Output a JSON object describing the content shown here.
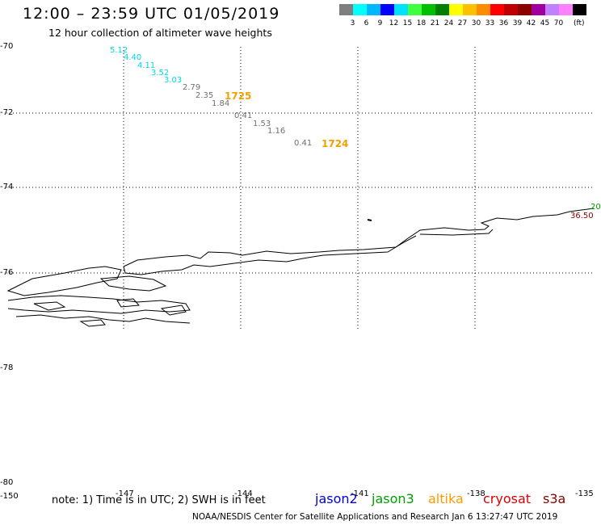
{
  "header": {
    "title": "12:00 – 23:59 UTC 01/05/2019",
    "subtitle": "12 hour collection of altimeter wave heights"
  },
  "scale": {
    "colors": [
      "#7f7f7f",
      "#00ffff",
      "#00b8ff",
      "#0000ff",
      "#00e0ff",
      "#40ff40",
      "#00c000",
      "#008000",
      "#ffff00",
      "#ffc000",
      "#ff8c00",
      "#ff0000",
      "#c00000",
      "#8b0000",
      "#a000a0",
      "#c080ff",
      "#ff80ff",
      "#000000"
    ],
    "labels": [
      "3",
      "6",
      "9",
      "12",
      "15",
      "18",
      "21",
      "24",
      "27",
      "30",
      "33",
      "36",
      "39",
      "42",
      "45",
      "70"
    ],
    "unit": "(ft)"
  },
  "axes": {
    "lat_labels": [
      "-70",
      "-72",
      "-74",
      "-76",
      "-78",
      "-80"
    ],
    "lon_labels": [
      "-150",
      "-147",
      "-144",
      "-141",
      "-138",
      "-135"
    ]
  },
  "swh": {
    "cyan": [
      "5.12",
      "4.40",
      "4.11",
      "3.52",
      "3.03"
    ],
    "gray": [
      "2.79",
      "2.35",
      "1.84",
      "0.41",
      "1.53",
      "1.16",
      "0.41"
    ]
  },
  "passes": [
    "1725",
    "1724"
  ],
  "edge_labels": {
    "green": "20",
    "dark": "36.50"
  },
  "note": "note: 1) Time is in UTC; 2) SWH is in feet",
  "satellites": [
    {
      "name": "jason2",
      "color": "#0000dd"
    },
    {
      "name": "jason3",
      "color": "#00a000"
    },
    {
      "name": "altika",
      "color": "#ff9900"
    },
    {
      "name": "cryosat",
      "color": "#dd0000"
    },
    {
      "name": "s3a",
      "color": "#8b0000"
    }
  ],
  "footer": "NOAA/NESDIS Center for Satellite Applications and Research   Jan  6 13:27:47 UTC 2019"
}
